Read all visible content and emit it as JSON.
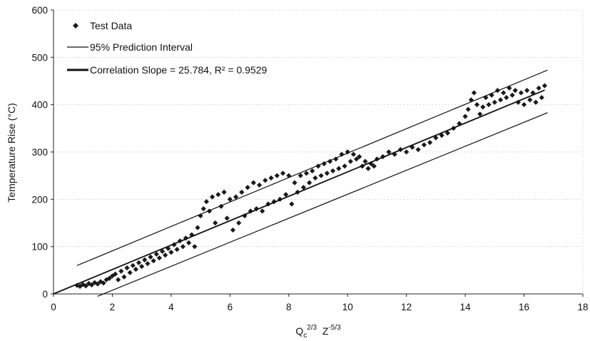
{
  "chart_data": {
    "type": "scatter",
    "title": "",
    "xlabel": "Q",
    "xlabel_sub": "c",
    "xlabel_sup1": "2/3",
    "xlabel_mid": "  Z",
    "xlabel_sup2": "-5/3",
    "ylabel": "Temperature Rise (°C)",
    "xlim": [
      0,
      18
    ],
    "ylim": [
      0,
      600
    ],
    "xticks": [
      "0",
      "2",
      "4",
      "6",
      "8",
      "10",
      "12",
      "14",
      "16",
      "18"
    ],
    "yticks": [
      "0",
      "100",
      "200",
      "300",
      "400",
      "500",
      "600"
    ],
    "grid": true,
    "legend_position": "top-left",
    "legend": [
      {
        "label": "Test Data",
        "style": "marker"
      },
      {
        "label": "95% Prediction Interval",
        "style": "thin-line"
      },
      {
        "label": "Correlation Slope = 25.784, R² = 0.9529",
        "style": "thick-line"
      }
    ],
    "correlation_line": {
      "name": "Correlation Slope = 25.784, R² = 0.9529",
      "slope": 25.784,
      "x": [
        0,
        16.7
      ],
      "y": [
        0,
        430.6
      ]
    },
    "prediction_upper": {
      "name": "95% Prediction Interval",
      "x": [
        0.8,
        16.8
      ],
      "y": [
        60,
        473
      ]
    },
    "prediction_lower": {
      "name": "95% Prediction Interval",
      "x": [
        1.5,
        16.8
      ],
      "y": [
        -5,
        383
      ]
    },
    "series": [
      {
        "name": "Test Data",
        "points": [
          [
            0.8,
            18
          ],
          [
            0.9,
            16
          ],
          [
            1.0,
            20
          ],
          [
            1.1,
            17
          ],
          [
            1.2,
            22
          ],
          [
            1.3,
            19
          ],
          [
            1.4,
            24
          ],
          [
            1.5,
            21
          ],
          [
            1.6,
            26
          ],
          [
            1.7,
            23
          ],
          [
            1.8,
            30
          ],
          [
            1.9,
            33
          ],
          [
            2.0,
            38
          ],
          [
            2.1,
            42
          ],
          [
            2.2,
            30
          ],
          [
            2.3,
            48
          ],
          [
            2.4,
            36
          ],
          [
            2.5,
            55
          ],
          [
            2.6,
            45
          ],
          [
            2.7,
            60
          ],
          [
            2.8,
            52
          ],
          [
            2.9,
            66
          ],
          [
            3.0,
            58
          ],
          [
            3.1,
            72
          ],
          [
            3.2,
            64
          ],
          [
            3.3,
            78
          ],
          [
            3.4,
            70
          ],
          [
            3.5,
            84
          ],
          [
            3.6,
            76
          ],
          [
            3.7,
            90
          ],
          [
            3.8,
            82
          ],
          [
            3.9,
            96
          ],
          [
            4.0,
            88
          ],
          [
            4.1,
            104
          ],
          [
            4.2,
            94
          ],
          [
            4.3,
            112
          ],
          [
            4.4,
            100
          ],
          [
            4.5,
            118
          ],
          [
            4.6,
            108
          ],
          [
            4.7,
            125
          ],
          [
            4.8,
            100
          ],
          [
            4.9,
            140
          ],
          [
            5.0,
            165
          ],
          [
            5.1,
            180
          ],
          [
            5.2,
            195
          ],
          [
            5.3,
            175
          ],
          [
            5.4,
            205
          ],
          [
            5.5,
            150
          ],
          [
            5.6,
            210
          ],
          [
            5.7,
            185
          ],
          [
            5.8,
            215
          ],
          [
            5.9,
            160
          ],
          [
            6.0,
            200
          ],
          [
            6.1,
            135
          ],
          [
            6.2,
            205
          ],
          [
            6.3,
            150
          ],
          [
            6.4,
            215
          ],
          [
            6.5,
            165
          ],
          [
            6.6,
            225
          ],
          [
            6.7,
            175
          ],
          [
            6.8,
            235
          ],
          [
            6.9,
            180
          ],
          [
            7.0,
            230
          ],
          [
            7.1,
            175
          ],
          [
            7.2,
            240
          ],
          [
            7.3,
            190
          ],
          [
            7.4,
            245
          ],
          [
            7.5,
            195
          ],
          [
            7.6,
            250
          ],
          [
            7.7,
            200
          ],
          [
            7.8,
            255
          ],
          [
            7.9,
            210
          ],
          [
            8.0,
            250
          ],
          [
            8.1,
            190
          ],
          [
            8.2,
            235
          ],
          [
            8.3,
            215
          ],
          [
            8.4,
            250
          ],
          [
            8.5,
            225
          ],
          [
            8.6,
            255
          ],
          [
            8.7,
            235
          ],
          [
            8.8,
            260
          ],
          [
            8.9,
            245
          ],
          [
            9.0,
            270
          ],
          [
            9.1,
            250
          ],
          [
            9.2,
            275
          ],
          [
            9.3,
            255
          ],
          [
            9.4,
            280
          ],
          [
            9.5,
            260
          ],
          [
            9.6,
            285
          ],
          [
            9.7,
            265
          ],
          [
            9.8,
            295
          ],
          [
            9.9,
            270
          ],
          [
            10.0,
            300
          ],
          [
            10.1,
            280
          ],
          [
            10.2,
            295
          ],
          [
            10.3,
            285
          ],
          [
            10.4,
            290
          ],
          [
            10.5,
            270
          ],
          [
            10.6,
            280
          ],
          [
            10.7,
            265
          ],
          [
            10.8,
            275
          ],
          [
            10.9,
            270
          ],
          [
            11.0,
            285
          ],
          [
            11.2,
            290
          ],
          [
            11.4,
            300
          ],
          [
            11.6,
            295
          ],
          [
            11.8,
            305
          ],
          [
            12.0,
            300
          ],
          [
            12.2,
            310
          ],
          [
            12.4,
            305
          ],
          [
            12.6,
            315
          ],
          [
            12.8,
            320
          ],
          [
            13.0,
            330
          ],
          [
            13.2,
            335
          ],
          [
            13.4,
            340
          ],
          [
            13.6,
            350
          ],
          [
            13.8,
            360
          ],
          [
            14.0,
            375
          ],
          [
            14.1,
            390
          ],
          [
            14.2,
            410
          ],
          [
            14.3,
            425
          ],
          [
            14.4,
            400
          ],
          [
            14.5,
            380
          ],
          [
            14.6,
            395
          ],
          [
            14.7,
            415
          ],
          [
            14.8,
            400
          ],
          [
            14.9,
            420
          ],
          [
            15.0,
            405
          ],
          [
            15.1,
            430
          ],
          [
            15.2,
            410
          ],
          [
            15.3,
            425
          ],
          [
            15.4,
            415
          ],
          [
            15.5,
            435
          ],
          [
            15.6,
            420
          ],
          [
            15.7,
            430
          ],
          [
            15.8,
            405
          ],
          [
            15.9,
            425
          ],
          [
            16.0,
            400
          ],
          [
            16.1,
            430
          ],
          [
            16.2,
            410
          ],
          [
            16.3,
            425
          ],
          [
            16.4,
            405
          ],
          [
            16.5,
            435
          ],
          [
            16.6,
            415
          ],
          [
            16.7,
            440
          ]
        ]
      }
    ]
  }
}
